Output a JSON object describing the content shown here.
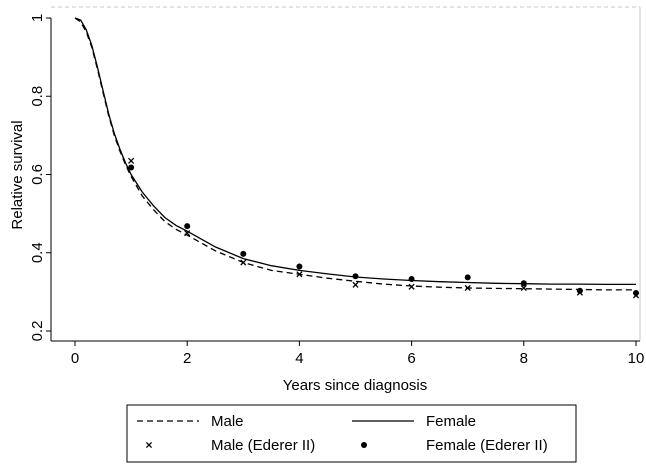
{
  "chart_data": {
    "type": "line",
    "title": "",
    "xlabel": "Years since diagnosis",
    "ylabel": "Relative survival",
    "xlim": [
      0,
      10
    ],
    "ylim": [
      0.2,
      1.0
    ],
    "xticks": [
      0,
      2,
      4,
      6,
      8,
      10
    ],
    "yticks": [
      0.2,
      0.4,
      0.6,
      0.8,
      1
    ],
    "grid": false,
    "legend_position": "bottom",
    "series": [
      {
        "name": "Male",
        "kind": "line",
        "style": "dashed",
        "x": [
          0,
          0.1,
          0.2,
          0.3,
          0.4,
          0.5,
          0.6,
          0.7,
          0.8,
          0.9,
          1.0,
          1.2,
          1.4,
          1.6,
          1.8,
          2.0,
          2.5,
          3.0,
          3.5,
          4.0,
          4.5,
          5.0,
          5.5,
          6.0,
          6.5,
          7.0,
          7.5,
          8.0,
          8.5,
          9.0,
          9.5,
          10.0
        ],
        "y": [
          1.0,
          0.99,
          0.965,
          0.925,
          0.87,
          0.81,
          0.75,
          0.7,
          0.66,
          0.625,
          0.595,
          0.545,
          0.51,
          0.48,
          0.46,
          0.445,
          0.405,
          0.375,
          0.355,
          0.345,
          0.335,
          0.327,
          0.32,
          0.315,
          0.312,
          0.31,
          0.309,
          0.308,
          0.307,
          0.306,
          0.305,
          0.305
        ]
      },
      {
        "name": "Female",
        "kind": "line",
        "style": "solid",
        "x": [
          0,
          0.1,
          0.2,
          0.3,
          0.4,
          0.5,
          0.6,
          0.7,
          0.8,
          0.9,
          1.0,
          1.2,
          1.4,
          1.6,
          1.8,
          2.0,
          2.5,
          3.0,
          3.5,
          4.0,
          4.5,
          5.0,
          5.5,
          6.0,
          6.5,
          7.0,
          7.5,
          8.0,
          8.5,
          9.0,
          9.5,
          10.0
        ],
        "y": [
          1.0,
          0.995,
          0.97,
          0.93,
          0.875,
          0.815,
          0.755,
          0.705,
          0.665,
          0.63,
          0.6,
          0.555,
          0.52,
          0.49,
          0.47,
          0.455,
          0.415,
          0.385,
          0.367,
          0.355,
          0.346,
          0.338,
          0.333,
          0.329,
          0.326,
          0.324,
          0.322,
          0.321,
          0.32,
          0.32,
          0.319,
          0.319
        ]
      },
      {
        "name": "Male (Ederer II)",
        "kind": "scatter",
        "marker": "x",
        "x": [
          1,
          2,
          3,
          4,
          5,
          6,
          7,
          8,
          9,
          10
        ],
        "y": [
          0.635,
          0.45,
          0.375,
          0.345,
          0.318,
          0.313,
          0.31,
          0.31,
          0.298,
          0.291
        ]
      },
      {
        "name": "Female (Ederer II)",
        "kind": "scatter",
        "marker": "dot",
        "x": [
          1,
          2,
          3,
          4,
          5,
          6,
          7,
          8,
          9,
          10
        ],
        "y": [
          0.618,
          0.468,
          0.397,
          0.365,
          0.34,
          0.333,
          0.337,
          0.322,
          0.303,
          0.297
        ]
      }
    ]
  }
}
